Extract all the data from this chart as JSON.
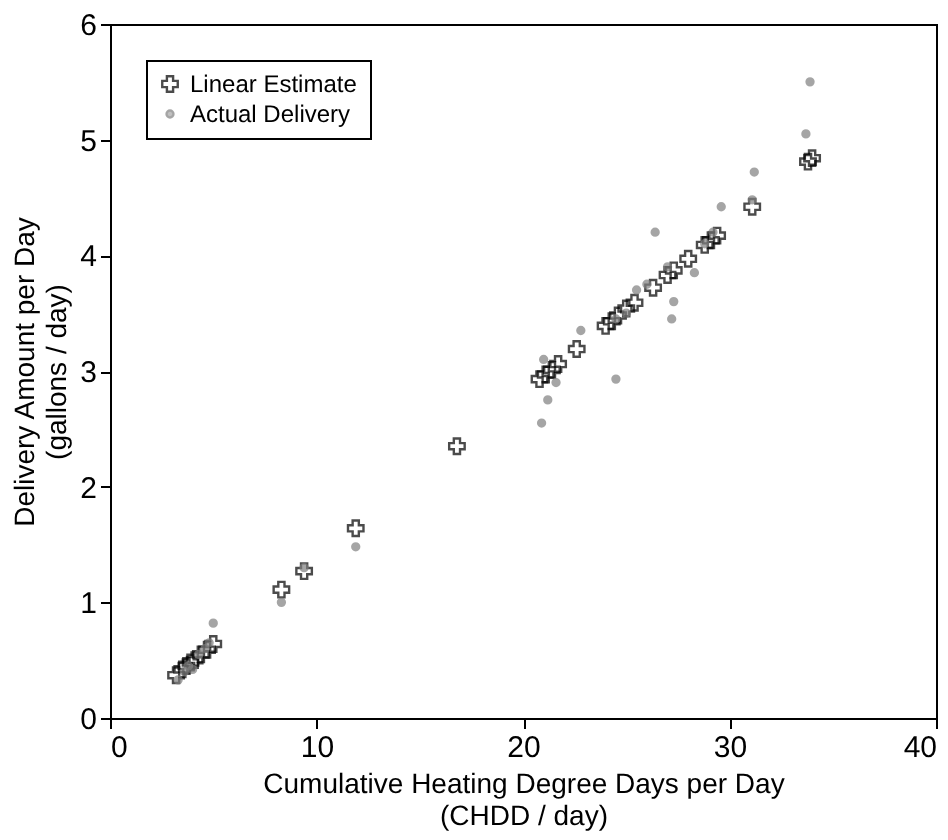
{
  "chart_data": {
    "type": "scatter",
    "xlabel": "Cumulative Heating Degree Days per Day\n(CHDD / day)",
    "ylabel": "Delivery Amount per Day\n(gallons / day)",
    "xlim": [
      0,
      40
    ],
    "xticks": [
      0,
      10,
      20,
      30,
      40
    ],
    "ylim": [
      0,
      6
    ],
    "yticks": [
      0,
      1,
      2,
      3,
      4,
      5,
      6
    ],
    "grid": false,
    "legend": "top left",
    "series": [
      {
        "name": "Linear Estimate",
        "color": "#000000",
        "marker": "cross",
        "x": [
          3.2,
          3.5,
          3.7,
          3.9,
          4.1,
          4.4,
          4.7,
          5.0,
          8.3,
          9.4,
          11.9,
          16.8,
          20.8,
          21.1,
          21.4,
          21.7,
          22.6,
          24.0,
          24.3,
          24.6,
          25.0,
          25.4,
          26.3,
          27.0,
          27.3,
          28.0,
          28.8,
          29.1,
          29.4,
          31.1,
          33.8,
          34.0
        ],
        "values": [
          0.37,
          0.42,
          0.45,
          0.48,
          0.5,
          0.55,
          0.59,
          0.64,
          1.11,
          1.27,
          1.64,
          2.35,
          2.93,
          2.97,
          3.01,
          3.06,
          3.19,
          3.39,
          3.43,
          3.48,
          3.54,
          3.59,
          3.72,
          3.83,
          3.87,
          3.97,
          4.09,
          4.13,
          4.17,
          4.42,
          4.81,
          4.84
        ]
      },
      {
        "name": "Actual Delivery",
        "color": "#808080",
        "marker": "circle",
        "x": [
          3.3,
          3.6,
          3.8,
          4.0,
          4.3,
          4.6,
          5.0,
          4.8,
          8.3,
          9.4,
          11.9,
          20.9,
          21.2,
          21.6,
          21.0,
          22.8,
          24.5,
          24.5,
          25.5,
          25.0,
          26.4,
          27.2,
          27.3,
          26.0,
          27.0,
          28.3,
          28.8,
          29.6,
          31.2,
          33.7,
          33.9,
          29.2,
          31.1
        ],
        "values": [
          0.33,
          0.4,
          0.45,
          0.42,
          0.55,
          0.6,
          0.82,
          0.65,
          1.0,
          1.3,
          1.48,
          2.55,
          2.75,
          2.9,
          3.1,
          3.35,
          2.93,
          3.45,
          3.7,
          3.5,
          4.2,
          3.45,
          3.6,
          3.75,
          3.9,
          3.85,
          4.1,
          4.42,
          4.72,
          5.05,
          5.5,
          4.2,
          4.48
        ]
      }
    ]
  }
}
